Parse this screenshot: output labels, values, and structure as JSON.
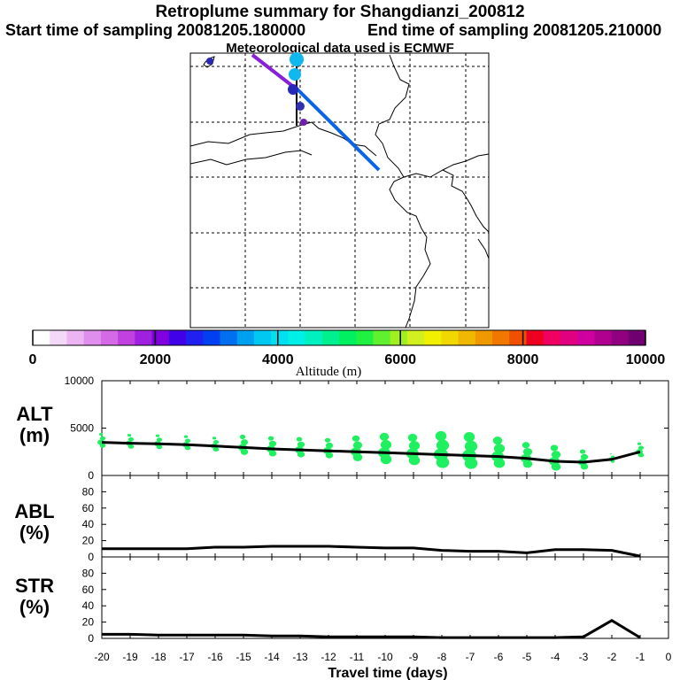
{
  "header": {
    "title": "Retroplume summary for Shangdianzi_200812",
    "start": "Start time of sampling 20081205.180000",
    "end": "End time of sampling 20081205.210000",
    "met": "Meteorological data used is ECMWF"
  },
  "colorbar": {
    "label": "Altitude (m)",
    "ticks": [
      "0",
      "2000",
      "4000",
      "6000",
      "8000",
      "10000"
    ],
    "colors": [
      "#ffffff",
      "#f4d8f8",
      "#ecb4f2",
      "#e08eee",
      "#d46ae6",
      "#c040e0",
      "#a020e0",
      "#8000e0",
      "#4000e8",
      "#2020f0",
      "#0040f0",
      "#0070f0",
      "#00a0f0",
      "#00c8f0",
      "#00e0f0",
      "#00f0e8",
      "#00f0c0",
      "#00f090",
      "#00f060",
      "#20f040",
      "#60f030",
      "#a0f020",
      "#d0f020",
      "#f0f000",
      "#f0d800",
      "#f0b800",
      "#f09800",
      "#f07800",
      "#f05000",
      "#f00020",
      "#f00060",
      "#e00080",
      "#d000a0",
      "#b00090",
      "#900080",
      "#700070"
    ]
  },
  "map": {
    "colors": {
      "track_blue": "#0a64e8",
      "track_purple": "#8820d8",
      "marker_cyan": "#10b8f0",
      "marker_navy": "#2828b8"
    }
  },
  "panels": {
    "alt": {
      "label1": "ALT",
      "label2": "(m)"
    },
    "abl": {
      "label1": "ABL",
      "label2": "(%)"
    },
    "str": {
      "label1": "STR",
      "label2": "(%)"
    },
    "xlabel": "Travel time (days)"
  },
  "chart_data": [
    {
      "type": "line",
      "name": "ALT",
      "ylabel": "ALT (m)",
      "xlim": [
        -20,
        0
      ],
      "ylim": [
        0,
        10000
      ],
      "yticks": [
        "0",
        "5000",
        "10000"
      ],
      "x": [
        -20,
        -19,
        -18,
        -17,
        -16,
        -15,
        -14,
        -13,
        -12,
        -11,
        -10,
        -9,
        -8,
        -7,
        -6,
        -5,
        -4,
        -3,
        -2,
        -1
      ],
      "values": [
        3500,
        3400,
        3350,
        3250,
        3100,
        2950,
        2800,
        2700,
        2600,
        2500,
        2400,
        2300,
        2200,
        2100,
        2000,
        1800,
        1500,
        1400,
        1700,
        2500
      ],
      "scatter_color": "#1ef060",
      "scatter_sizes": [
        3,
        3,
        3,
        3,
        3,
        4,
        4,
        4,
        4,
        5,
        6,
        6,
        7,
        7,
        6,
        5,
        5,
        4,
        2,
        3
      ]
    },
    {
      "type": "line",
      "name": "ABL",
      "ylabel": "ABL (%)",
      "xlim": [
        -20,
        0
      ],
      "ylim": [
        0,
        100
      ],
      "yticks": [
        "0",
        "20",
        "40",
        "60",
        "80"
      ],
      "x": [
        -20,
        -19,
        -18,
        -17,
        -16,
        -15,
        -14,
        -13,
        -12,
        -11,
        -10,
        -9,
        -8,
        -7,
        -6,
        -5,
        -4,
        -3,
        -2,
        -1
      ],
      "values": [
        10,
        10,
        10,
        10,
        12,
        12,
        13,
        13,
        13,
        12,
        11,
        11,
        8,
        7,
        7,
        5,
        9,
        9,
        8,
        1
      ]
    },
    {
      "type": "line",
      "name": "STR",
      "ylabel": "STR (%)",
      "xlim": [
        -20,
        0
      ],
      "ylim": [
        0,
        100
      ],
      "yticks": [
        "0",
        "20",
        "40",
        "60",
        "80"
      ],
      "xticks": [
        "-20",
        "-19",
        "-18",
        "-17",
        "-16",
        "-15",
        "-14",
        "-13",
        "-12",
        "-11",
        "-10",
        "-9",
        "-8",
        "-7",
        "-6",
        "-5",
        "-4",
        "-3",
        "-2",
        "-1",
        "0"
      ],
      "x": [
        -20,
        -19,
        -18,
        -17,
        -16,
        -15,
        -14,
        -13,
        -12,
        -11,
        -10,
        -9,
        -8,
        -7,
        -6,
        -5,
        -4,
        -3,
        -2,
        -1
      ],
      "values": [
        5,
        5,
        4,
        4,
        4,
        4,
        3,
        3,
        2,
        2,
        2,
        2,
        1,
        1,
        1,
        1,
        1,
        2,
        22,
        1
      ]
    }
  ]
}
